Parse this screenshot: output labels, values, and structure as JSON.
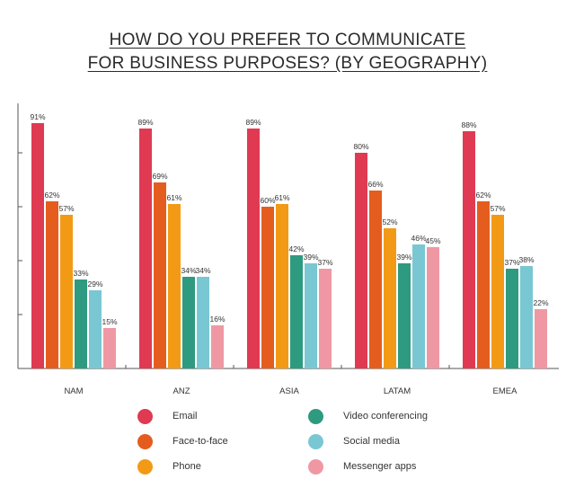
{
  "chart_data": {
    "type": "bar",
    "title_lines": [
      "HOW DO YOU PREFER TO COMMUNICATE",
      "FOR BUSINESS PURPOSES? (BY GEOGRAPHY)"
    ],
    "categories": [
      "NAM",
      "ANZ",
      "ASIA",
      "LATAM",
      "EMEA"
    ],
    "ylim": [
      0,
      100
    ],
    "grid": false,
    "legend_position": "bottom",
    "series": [
      {
        "name": "Email",
        "color": "#e03a52",
        "values": [
          91,
          89,
          89,
          80,
          88
        ],
        "labels": [
          "91%",
          "89%",
          "89%",
          "80%",
          "88%"
        ]
      },
      {
        "name": "Face-to-face",
        "color": "#e45d1f",
        "values": [
          62,
          69,
          60,
          66,
          62
        ],
        "labels": [
          "62%",
          "69%",
          "60%",
          "66%",
          "62%"
        ]
      },
      {
        "name": "Phone",
        "color": "#f29a16",
        "values": [
          57,
          61,
          61,
          52,
          57
        ],
        "labels": [
          "57%",
          "61%",
          "61%",
          "52%",
          "57%"
        ]
      },
      {
        "name": "Video conferencing",
        "color": "#2e9a80",
        "values": [
          33,
          34,
          42,
          39,
          37
        ],
        "labels": [
          "33%",
          "34%",
          "42%",
          "39%",
          "37%"
        ]
      },
      {
        "name": "Social media",
        "color": "#79c7d3",
        "values": [
          29,
          34,
          39,
          46,
          38
        ],
        "labels": [
          "29%",
          "34%",
          "39%",
          "46%",
          "38%"
        ]
      },
      {
        "name": "Messenger apps",
        "color": "#ef98a3",
        "values": [
          15,
          16,
          37,
          45,
          22
        ],
        "labels": [
          "15%",
          "16%",
          "37%",
          "45%",
          "22%"
        ]
      }
    ]
  }
}
